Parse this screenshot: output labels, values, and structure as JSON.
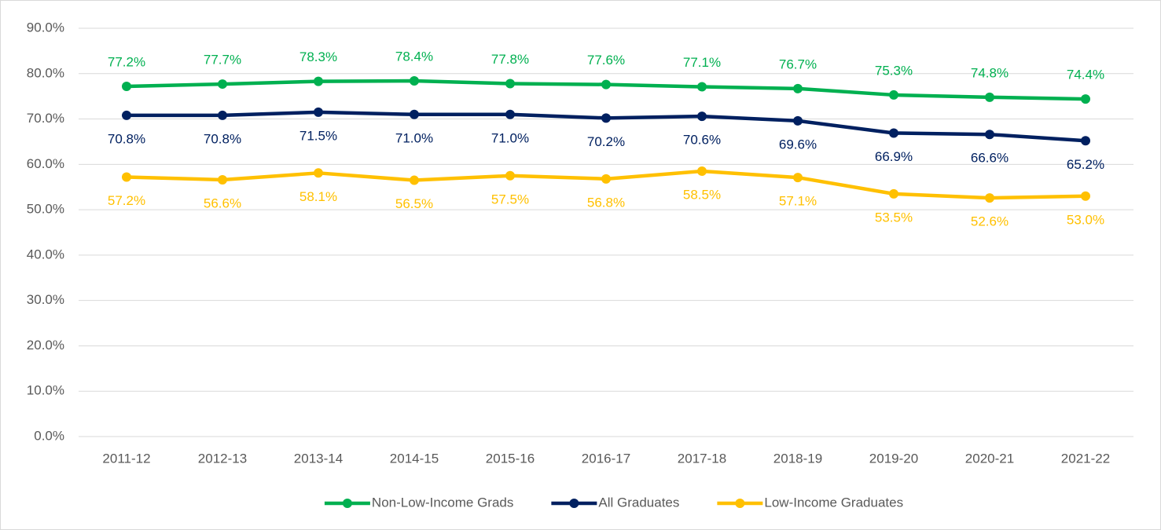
{
  "chart_data": {
    "type": "line",
    "categories": [
      "2011-12",
      "2012-13",
      "2013-14",
      "2014-15",
      "2015-16",
      "2016-17",
      "2017-18",
      "2018-19",
      "2019-20",
      "2020-21",
      "2021-22"
    ],
    "series": [
      {
        "name": "Non-Low-Income Grads",
        "color": "#00b050",
        "values": [
          77.2,
          77.7,
          78.3,
          78.4,
          77.8,
          77.6,
          77.1,
          76.7,
          75.3,
          74.8,
          74.4
        ],
        "value_labels": [
          "77.2%",
          "77.7%",
          "78.3%",
          "78.4%",
          "77.8%",
          "77.6%",
          "77.1%",
          "76.7%",
          "75.3%",
          "74.8%",
          "74.4%"
        ]
      },
      {
        "name": "All Graduates",
        "color": "#002060",
        "values": [
          70.8,
          70.8,
          71.5,
          71.0,
          71.0,
          70.2,
          70.6,
          69.6,
          66.9,
          66.6,
          65.2
        ],
        "value_labels": [
          "70.8%",
          "70.8%",
          "71.5%",
          "71.0%",
          "71.0%",
          "70.2%",
          "70.6%",
          "69.6%",
          "66.9%",
          "66.6%",
          "65.2%"
        ]
      },
      {
        "name": "Low-Income Graduates",
        "color": "#ffc000",
        "values": [
          57.2,
          56.6,
          58.1,
          56.5,
          57.5,
          56.8,
          58.5,
          57.1,
          53.5,
          52.6,
          53.0
        ],
        "value_labels": [
          "57.2%",
          "56.6%",
          "58.1%",
          "56.5%",
          "57.5%",
          "56.8%",
          "58.5%",
          "57.1%",
          "53.5%",
          "52.6%",
          "53.0%"
        ]
      }
    ],
    "ylim": [
      0,
      90
    ],
    "yticks": [
      {
        "value": 0,
        "label": "0.0%"
      },
      {
        "value": 10,
        "label": "10.0%"
      },
      {
        "value": 20,
        "label": "20.0%"
      },
      {
        "value": 30,
        "label": "30.0%"
      },
      {
        "value": 40,
        "label": "40.0%"
      },
      {
        "value": 50,
        "label": "50.0%"
      },
      {
        "value": 60,
        "label": "60.0%"
      },
      {
        "value": 70,
        "label": "70.0%"
      },
      {
        "value": 80,
        "label": "80.0%"
      },
      {
        "value": 90,
        "label": "90.0%"
      }
    ],
    "grid": true,
    "legend": "bottom"
  }
}
